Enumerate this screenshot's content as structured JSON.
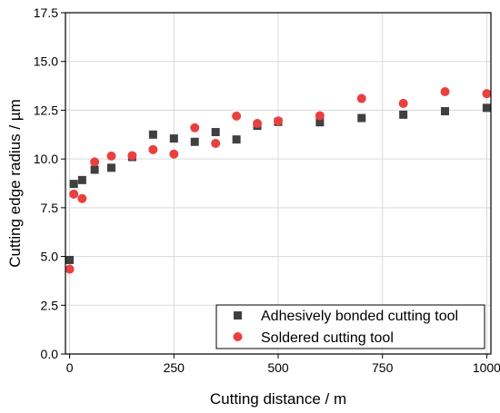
{
  "chart_data": {
    "type": "scatter",
    "title": "",
    "xlabel": "Cutting distance / m",
    "ylabel": "Cutting edge radius / µm",
    "xlim": [
      -10,
      1010
    ],
    "ylim": [
      0,
      17.5
    ],
    "x_ticks": [
      0,
      250,
      500,
      750,
      1000
    ],
    "y_ticks": [
      0.0,
      2.5,
      5.0,
      7.5,
      10.0,
      12.5,
      15.0,
      17.5
    ],
    "x_tick_labels": [
      "0",
      "250",
      "500",
      "750",
      "1000"
    ],
    "y_tick_labels": [
      "0.0",
      "2.5",
      "5.0",
      "7.5",
      "10.0",
      "12.5",
      "15.0",
      "17.5"
    ],
    "grid": true,
    "legend_position": "bottom-right",
    "series": [
      {
        "name": "Adhesively bonded cutting tool",
        "marker": "square",
        "color": "#404040",
        "points": [
          [
            0,
            4.82
          ],
          [
            10,
            8.72
          ],
          [
            30,
            8.92
          ],
          [
            60,
            9.45
          ],
          [
            100,
            9.55
          ],
          [
            150,
            10.1
          ],
          [
            200,
            11.25
          ],
          [
            250,
            11.05
          ],
          [
            300,
            10.88
          ],
          [
            350,
            11.38
          ],
          [
            400,
            11.0
          ],
          [
            450,
            11.7
          ],
          [
            500,
            11.9
          ],
          [
            600,
            11.88
          ],
          [
            700,
            12.1
          ],
          [
            800,
            12.27
          ],
          [
            900,
            12.45
          ],
          [
            1000,
            12.62
          ]
        ]
      },
      {
        "name": "Soldered cutting tool",
        "marker": "circle",
        "color": "#e8403f",
        "points": [
          [
            0,
            4.35
          ],
          [
            10,
            8.2
          ],
          [
            30,
            7.97
          ],
          [
            60,
            9.85
          ],
          [
            100,
            10.15
          ],
          [
            150,
            10.17
          ],
          [
            200,
            10.48
          ],
          [
            250,
            10.25
          ],
          [
            300,
            11.6
          ],
          [
            350,
            10.8
          ],
          [
            400,
            12.2
          ],
          [
            450,
            11.82
          ],
          [
            500,
            11.95
          ],
          [
            600,
            12.22
          ],
          [
            700,
            13.1
          ],
          [
            800,
            12.85
          ],
          [
            900,
            13.45
          ],
          [
            1000,
            13.35
          ]
        ]
      }
    ]
  }
}
